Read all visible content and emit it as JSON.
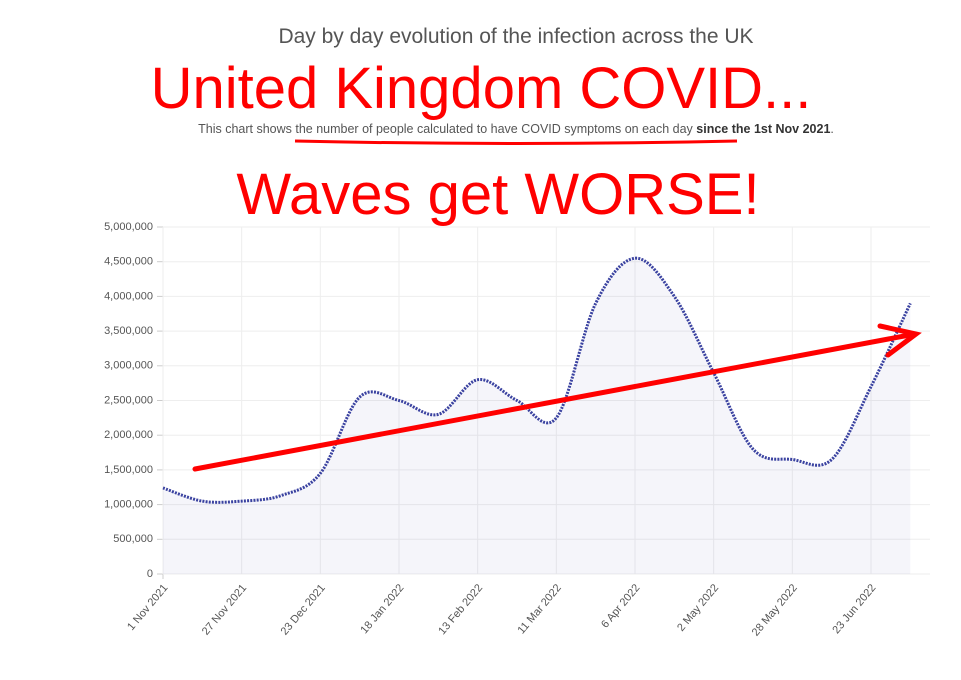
{
  "header": "Day by day evolution of the infection across the UK",
  "headline": "United Kingdom COVID...",
  "description": [
    "This chart shows the number of people calculated to have COVID symptoms on each day",
    "since the 1st Nov 2021",
    "."
  ],
  "annotation": "Waves get WORSE!",
  "chart_data": {
    "type": "line",
    "categories": [
      "1 Nov 2021",
      null,
      "27 Nov 2021",
      null,
      "23 Dec 2021",
      null,
      "18 Jan 2022",
      null,
      "13 Feb 2022",
      null,
      "11 Mar 2022",
      null,
      "6 Apr 2022",
      null,
      "2 May 2022",
      null,
      "28 May 2022",
      null,
      "23 Jun 2022",
      null
    ],
    "series": [
      {
        "color": "#3a42a0",
        "values": [
          1240000,
          1050000,
          1050000,
          1130000,
          1450000,
          2550000,
          2500000,
          2300000,
          2800000,
          2500000,
          2250000,
          3900000,
          4550000,
          4000000,
          2900000,
          1800000,
          1650000,
          1650000,
          2700000,
          3900000
        ]
      }
    ],
    "ylim": [
      0,
      5000000
    ],
    "yticks": [
      0,
      {
        "value": 500000,
        "label": "500,000"
      },
      {
        "value": 1000000,
        "label": "1,000,000"
      },
      {
        "value": 1500000,
        "label": "1,500,000"
      },
      {
        "value": 2000000,
        "label": "2,000,000"
      },
      {
        "value": 2500000,
        "label": "2,500,000"
      },
      {
        "value": 3000000,
        "label": "3,000,000"
      },
      {
        "value": 3500000,
        "label": "3,500,000"
      },
      {
        "value": 4000000,
        "label": "4,000,000"
      },
      {
        "value": 4500000,
        "label": "4,500,000"
      },
      {
        "value": 5000000,
        "label": "5,000,000"
      }
    ],
    "grid": true
  }
}
